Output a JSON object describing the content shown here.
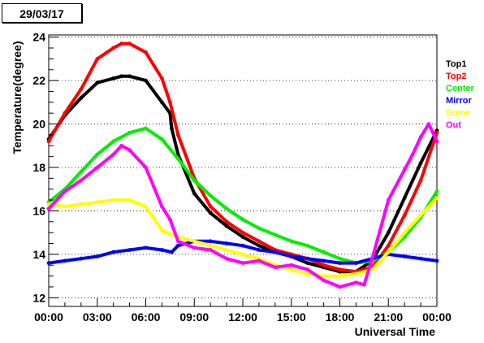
{
  "date_label": "29/03/17",
  "chart_data": {
    "type": "scatter",
    "title": "",
    "xlabel": "Universal Time",
    "ylabel": "Temperature(degree)",
    "xlim": [
      0,
      24
    ],
    "ylim": [
      11.6,
      24.1
    ],
    "x_unit": "hours",
    "x_ticks": [
      0,
      3,
      6,
      9,
      12,
      15,
      18,
      21,
      24
    ],
    "x_tick_labels": [
      "00:00",
      "03:00",
      "06:00",
      "09:00",
      "12:00",
      "15:00",
      "18:00",
      "21:00",
      "00:00"
    ],
    "y_ticks": [
      12,
      14,
      16,
      18,
      20,
      22,
      24
    ],
    "y_tick_labels": [
      "12",
      "14",
      "16",
      "18",
      "20",
      "22",
      "24"
    ],
    "grid": "horizontal-dotted",
    "legend_position": "right",
    "series": [
      {
        "name": "Top1",
        "color": "#000000",
        "points": [
          [
            0,
            19.3
          ],
          [
            1,
            20.4
          ],
          [
            2,
            21.2
          ],
          [
            3,
            21.9
          ],
          [
            4,
            22.1
          ],
          [
            4.5,
            22.2
          ],
          [
            5,
            22.2
          ],
          [
            6,
            22.0
          ],
          [
            7,
            21.0
          ],
          [
            7.5,
            20.5
          ],
          [
            7.6,
            19.8
          ],
          [
            8,
            18.6
          ],
          [
            9,
            16.8
          ],
          [
            10,
            15.9
          ],
          [
            11,
            15.3
          ],
          [
            12,
            14.8
          ],
          [
            13,
            14.4
          ],
          [
            14,
            14.1
          ],
          [
            15,
            13.9
          ],
          [
            16,
            13.6
          ],
          [
            17,
            13.4
          ],
          [
            18,
            13.2
          ],
          [
            19,
            13.2
          ],
          [
            20,
            13.7
          ],
          [
            21,
            15.0
          ],
          [
            22,
            16.6
          ],
          [
            23,
            18.2
          ],
          [
            24,
            19.7
          ]
        ]
      },
      {
        "name": "Top2",
        "color": "#ff0000",
        "points": [
          [
            0,
            19.2
          ],
          [
            1,
            20.5
          ],
          [
            2,
            21.6
          ],
          [
            3,
            23.0
          ],
          [
            4,
            23.5
          ],
          [
            4.5,
            23.7
          ],
          [
            5,
            23.7
          ],
          [
            6,
            23.3
          ],
          [
            7,
            22.1
          ],
          [
            7.5,
            21.0
          ],
          [
            8,
            19.5
          ],
          [
            9,
            17.5
          ],
          [
            10,
            16.2
          ],
          [
            11,
            15.5
          ],
          [
            12,
            15.0
          ],
          [
            13,
            14.6
          ],
          [
            14,
            14.2
          ],
          [
            15,
            14.0
          ],
          [
            16,
            13.8
          ],
          [
            17,
            13.5
          ],
          [
            18,
            13.3
          ],
          [
            19,
            13.2
          ],
          [
            20,
            13.4
          ],
          [
            21,
            14.4
          ],
          [
            22,
            15.8
          ],
          [
            23,
            17.4
          ],
          [
            24,
            19.6
          ]
        ]
      },
      {
        "name": "Center",
        "color": "#00ee00",
        "points": [
          [
            0,
            16.4
          ],
          [
            1,
            17.0
          ],
          [
            2,
            17.8
          ],
          [
            3,
            18.6
          ],
          [
            4,
            19.2
          ],
          [
            5,
            19.6
          ],
          [
            6,
            19.8
          ],
          [
            7,
            19.3
          ],
          [
            8,
            18.4
          ],
          [
            9,
            17.4
          ],
          [
            10,
            16.7
          ],
          [
            11,
            16.1
          ],
          [
            12,
            15.6
          ],
          [
            13,
            15.2
          ],
          [
            14,
            14.9
          ],
          [
            15,
            14.6
          ],
          [
            16,
            14.4
          ],
          [
            17,
            14.1
          ],
          [
            18,
            13.8
          ],
          [
            19,
            13.6
          ],
          [
            20,
            13.7
          ],
          [
            21,
            14.1
          ],
          [
            22,
            14.8
          ],
          [
            23,
            15.7
          ],
          [
            24,
            16.9
          ]
        ]
      },
      {
        "name": "Mirror",
        "color": "#0000ff",
        "points": [
          [
            0,
            13.6
          ],
          [
            1,
            13.7
          ],
          [
            2,
            13.8
          ],
          [
            3,
            13.9
          ],
          [
            4,
            14.1
          ],
          [
            5,
            14.2
          ],
          [
            6,
            14.3
          ],
          [
            7,
            14.2
          ],
          [
            7.6,
            14.1
          ],
          [
            8,
            14.4
          ],
          [
            9,
            14.6
          ],
          [
            10,
            14.6
          ],
          [
            11,
            14.5
          ],
          [
            12,
            14.4
          ],
          [
            13,
            14.2
          ],
          [
            14,
            14.1
          ],
          [
            15,
            13.9
          ],
          [
            16,
            13.8
          ],
          [
            17,
            13.7
          ],
          [
            18,
            13.6
          ],
          [
            19,
            13.6
          ],
          [
            20,
            13.8
          ],
          [
            21,
            14.0
          ],
          [
            22,
            13.9
          ],
          [
            23,
            13.8
          ],
          [
            24,
            13.7
          ]
        ]
      },
      {
        "name": "Dome",
        "color": "#ffff00",
        "points": [
          [
            0,
            16.3
          ],
          [
            1,
            16.2
          ],
          [
            2,
            16.3
          ],
          [
            3,
            16.4
          ],
          [
            4,
            16.5
          ],
          [
            5,
            16.5
          ],
          [
            6,
            16.2
          ],
          [
            7,
            15.1
          ],
          [
            8,
            14.8
          ],
          [
            9,
            14.6
          ],
          [
            10,
            14.4
          ],
          [
            11,
            14.2
          ],
          [
            12,
            14.0
          ],
          [
            13,
            13.8
          ],
          [
            14,
            13.5
          ],
          [
            15,
            13.3
          ],
          [
            16,
            13.1
          ],
          [
            17,
            13.0
          ],
          [
            18,
            13.0
          ],
          [
            19,
            13.1
          ],
          [
            20,
            13.3
          ],
          [
            21,
            14.1
          ],
          [
            22,
            15.0
          ],
          [
            23,
            15.8
          ],
          [
            24,
            16.6
          ]
        ]
      },
      {
        "name": "Out",
        "color": "#ff00ff",
        "points": [
          [
            0,
            16.1
          ],
          [
            1,
            16.9
          ],
          [
            2,
            17.4
          ],
          [
            3,
            18.0
          ],
          [
            4,
            18.6
          ],
          [
            4.5,
            19.0
          ],
          [
            5,
            18.8
          ],
          [
            6,
            18.0
          ],
          [
            7,
            16.2
          ],
          [
            7.5,
            15.6
          ],
          [
            8,
            14.6
          ],
          [
            9,
            14.3
          ],
          [
            10,
            14.2
          ],
          [
            11,
            13.8
          ],
          [
            12,
            13.6
          ],
          [
            13,
            13.7
          ],
          [
            14,
            13.4
          ],
          [
            15,
            13.5
          ],
          [
            16,
            13.3
          ],
          [
            17,
            12.8
          ],
          [
            18,
            12.5
          ],
          [
            19,
            12.7
          ],
          [
            19.5,
            12.6
          ],
          [
            20,
            13.8
          ],
          [
            21,
            16.5
          ],
          [
            22,
            17.9
          ],
          [
            22.5,
            18.6
          ],
          [
            23,
            19.4
          ],
          [
            23.5,
            20.0
          ],
          [
            24,
            19.2
          ]
        ]
      }
    ]
  }
}
